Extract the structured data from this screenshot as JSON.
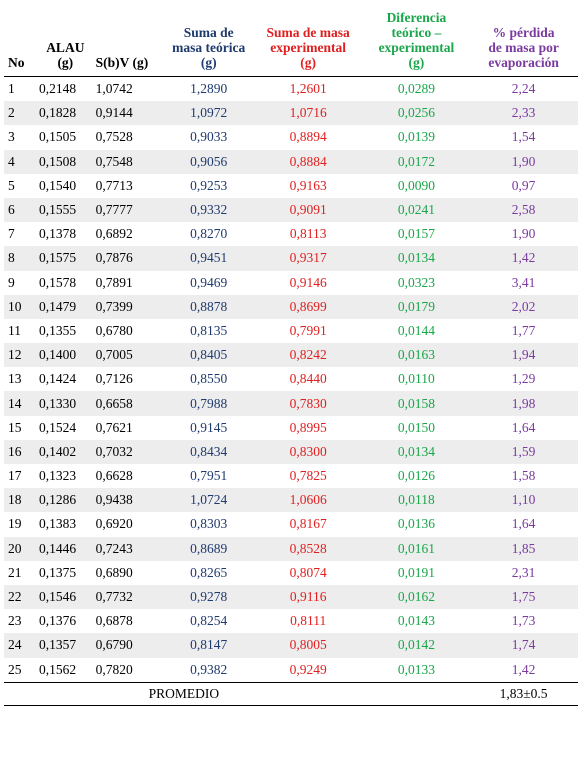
{
  "headers": {
    "no": "No",
    "alau": [
      "ALAU",
      "(g)"
    ],
    "sbv": "S(b)V (g)",
    "teorica": [
      "Suma de",
      "masa teórica",
      "(g)"
    ],
    "experimental": [
      "Suma de masa",
      "experimental",
      "(g)"
    ],
    "diferencia": [
      "Diferencia",
      "teórico –",
      "experimental",
      "(g)"
    ],
    "perdida": [
      "% pérdida",
      "de masa por",
      "evaporación"
    ]
  },
  "rows": [
    {
      "no": "1",
      "alau": "0,2148",
      "sbv": "1,0742",
      "teo": "1,2890",
      "exp": "1,2601",
      "dif": "0,0289",
      "per": "2,24"
    },
    {
      "no": "2",
      "alau": "0,1828",
      "sbv": "0,9144",
      "teo": "1,0972",
      "exp": "1,0716",
      "dif": "0,0256",
      "per": "2,33"
    },
    {
      "no": "3",
      "alau": "0,1505",
      "sbv": "0,7528",
      "teo": "0,9033",
      "exp": "0,8894",
      "dif": "0,0139",
      "per": "1,54"
    },
    {
      "no": "4",
      "alau": "0,1508",
      "sbv": "0,7548",
      "teo": "0,9056",
      "exp": "0,8884",
      "dif": "0,0172",
      "per": "1,90"
    },
    {
      "no": "5",
      "alau": "0,1540",
      "sbv": "0,7713",
      "teo": "0,9253",
      "exp": "0,9163",
      "dif": "0,0090",
      "per": "0,97"
    },
    {
      "no": "6",
      "alau": "0,1555",
      "sbv": "0,7777",
      "teo": "0,9332",
      "exp": "0,9091",
      "dif": "0,0241",
      "per": "2,58"
    },
    {
      "no": "7",
      "alau": "0,1378",
      "sbv": "0,6892",
      "teo": "0,8270",
      "exp": "0,8113",
      "dif": "0,0157",
      "per": "1,90"
    },
    {
      "no": "8",
      "alau": "0,1575",
      "sbv": "0,7876",
      "teo": "0,9451",
      "exp": "0,9317",
      "dif": "0,0134",
      "per": "1,42"
    },
    {
      "no": "9",
      "alau": "0,1578",
      "sbv": "0,7891",
      "teo": "0,9469",
      "exp": "0,9146",
      "dif": "0,0323",
      "per": "3,41"
    },
    {
      "no": "10",
      "alau": "0,1479",
      "sbv": "0,7399",
      "teo": "0,8878",
      "exp": "0,8699",
      "dif": "0,0179",
      "per": "2,02"
    },
    {
      "no": "11",
      "alau": "0,1355",
      "sbv": "0,6780",
      "teo": "0,8135",
      "exp": "0,7991",
      "dif": "0,0144",
      "per": "1,77"
    },
    {
      "no": "12",
      "alau": "0,1400",
      "sbv": "0,7005",
      "teo": "0,8405",
      "exp": "0,8242",
      "dif": "0,0163",
      "per": "1,94"
    },
    {
      "no": "13",
      "alau": "0,1424",
      "sbv": "0,7126",
      "teo": "0,8550",
      "exp": "0,8440",
      "dif": "0,0110",
      "per": "1,29"
    },
    {
      "no": "14",
      "alau": "0,1330",
      "sbv": "0,6658",
      "teo": "0,7988",
      "exp": "0,7830",
      "dif": "0,0158",
      "per": "1,98"
    },
    {
      "no": "15",
      "alau": "0,1524",
      "sbv": "0,7621",
      "teo": "0,9145",
      "exp": "0,8995",
      "dif": "0,0150",
      "per": "1,64"
    },
    {
      "no": "16",
      "alau": "0,1402",
      "sbv": "0,7032",
      "teo": "0,8434",
      "exp": "0,8300",
      "dif": "0,0134",
      "per": "1,59"
    },
    {
      "no": "17",
      "alau": "0,1323",
      "sbv": "0,6628",
      "teo": "0,7951",
      "exp": "0,7825",
      "dif": "0,0126",
      "per": "1,58"
    },
    {
      "no": "18",
      "alau": "0,1286",
      "sbv": "0,9438",
      "teo": "1,0724",
      "exp": "1,0606",
      "dif": "0,0118",
      "per": "1,10"
    },
    {
      "no": "19",
      "alau": "0,1383",
      "sbv": "0,6920",
      "teo": "0,8303",
      "exp": "0,8167",
      "dif": "0,0136",
      "per": "1,64"
    },
    {
      "no": "20",
      "alau": "0,1446",
      "sbv": "0,7243",
      "teo": "0,8689",
      "exp": "0,8528",
      "dif": "0,0161",
      "per": "1,85"
    },
    {
      "no": "21",
      "alau": "0,1375",
      "sbv": "0,6890",
      "teo": "0,8265",
      "exp": "0,8074",
      "dif": "0,0191",
      "per": "2,31"
    },
    {
      "no": "22",
      "alau": "0,1546",
      "sbv": "0,7732",
      "teo": "0,9278",
      "exp": "0,9116",
      "dif": "0,0162",
      "per": "1,75"
    },
    {
      "no": "23",
      "alau": "0,1376",
      "sbv": "0,6878",
      "teo": "0,8254",
      "exp": "0,8111",
      "dif": "0,0143",
      "per": "1,73"
    },
    {
      "no": "24",
      "alau": "0,1357",
      "sbv": "0,6790",
      "teo": "0,8147",
      "exp": "0,8005",
      "dif": "0,0142",
      "per": "1,74"
    },
    {
      "no": "25",
      "alau": "0,1562",
      "sbv": "0,7820",
      "teo": "0,9382",
      "exp": "0,9249",
      "dif": "0,0133",
      "per": "1,42"
    }
  ],
  "footer": {
    "label": "PROMEDIO",
    "average": "1,83±0.5"
  },
  "colors": {
    "teorica": "#1f3a6e",
    "experimental": "#e02020",
    "diferencia": "#1aa64a",
    "perdida": "#7a3aa0",
    "stripe": "#ededed"
  }
}
